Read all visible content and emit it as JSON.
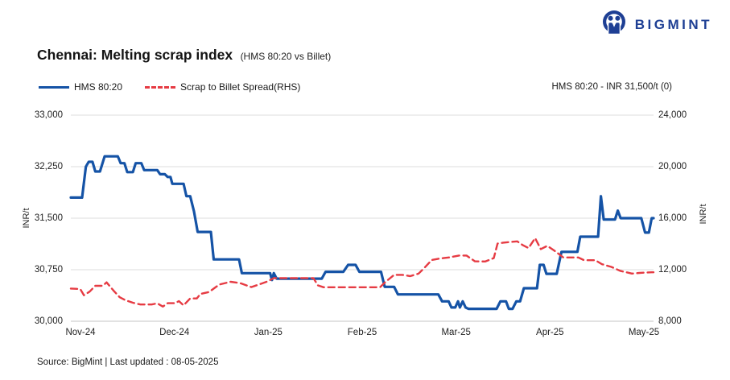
{
  "logo": {
    "brand": "BIGMINT"
  },
  "header": {
    "title": "Chennai: Melting scrap index",
    "subtitle": "(HMS 80:20 vs Billet)"
  },
  "legend": {
    "items": [
      {
        "label": "HMS 80:20"
      },
      {
        "label": "Scrap to Billet Spread(RHS)"
      }
    ],
    "annotation": "HMS 80:20 - INR 31,500/t (0)"
  },
  "footer": {
    "source": "Source: BigMint | Last updated : 08-05-2025"
  },
  "colors": {
    "brand_blue": "#1e3f94",
    "series_blue": "#1553a6",
    "series_red": "#e63b43",
    "grid": "#dcdcdc",
    "axis_line": "#c6c6c6"
  },
  "chart_data": {
    "type": "line",
    "title": "Chennai: Melting scrap index (HMS 80:20 vs Billet)",
    "grid": true,
    "legend_position": "top-left",
    "x_axis": {
      "labels": [
        "Nov-24",
        "Dec-24",
        "Jan-25",
        "Feb-25",
        "Mar-25",
        "Apr-25",
        "May-25"
      ],
      "tick_values": [
        0,
        1,
        2,
        3,
        4,
        5,
        6
      ],
      "range": [
        -0.1,
        6.1
      ]
    },
    "left_axis": {
      "title": "INR/t",
      "ticks": [
        "33,000",
        "32,250",
        "31,500",
        "30,750",
        "30,000"
      ],
      "tick_values": [
        33000,
        32250,
        31500,
        30750,
        30000
      ],
      "range": [
        30000,
        33000
      ]
    },
    "right_axis": {
      "title": "INR/t",
      "ticks": [
        "24,000",
        "20,000",
        "16,000",
        "12,000",
        "8,000"
      ],
      "tick_values": [
        24000,
        20000,
        16000,
        12000,
        8000
      ],
      "range": [
        8000,
        24000
      ]
    },
    "series": [
      {
        "name": "HMS 80:20",
        "axis": "left",
        "color": "#1553a6",
        "style": "solid",
        "latest_value": 31500,
        "latest_change": 0,
        "points": [
          [
            -0.1,
            31800
          ],
          [
            0.02,
            31800
          ],
          [
            0.06,
            32250
          ],
          [
            0.09,
            32320
          ],
          [
            0.13,
            32320
          ],
          [
            0.16,
            32180
          ],
          [
            0.21,
            32180
          ],
          [
            0.26,
            32400
          ],
          [
            0.4,
            32400
          ],
          [
            0.43,
            32300
          ],
          [
            0.47,
            32300
          ],
          [
            0.5,
            32170
          ],
          [
            0.56,
            32170
          ],
          [
            0.59,
            32300
          ],
          [
            0.65,
            32300
          ],
          [
            0.68,
            32200
          ],
          [
            0.82,
            32200
          ],
          [
            0.85,
            32140
          ],
          [
            0.9,
            32140
          ],
          [
            0.93,
            32100
          ],
          [
            0.96,
            32100
          ],
          [
            0.98,
            32000
          ],
          [
            1.1,
            32000
          ],
          [
            1.13,
            31820
          ],
          [
            1.17,
            31820
          ],
          [
            1.21,
            31600
          ],
          [
            1.25,
            31300
          ],
          [
            1.39,
            31300
          ],
          [
            1.42,
            30900
          ],
          [
            1.69,
            30900
          ],
          [
            1.72,
            30700
          ],
          [
            2.02,
            30700
          ],
          [
            2.04,
            30600
          ],
          [
            2.06,
            30700
          ],
          [
            2.09,
            30620
          ],
          [
            2.57,
            30620
          ],
          [
            2.61,
            30720
          ],
          [
            2.8,
            30720
          ],
          [
            2.85,
            30820
          ],
          [
            2.93,
            30820
          ],
          [
            2.97,
            30720
          ],
          [
            3.2,
            30720
          ],
          [
            3.24,
            30500
          ],
          [
            3.34,
            30500
          ],
          [
            3.38,
            30390
          ],
          [
            3.81,
            30390
          ],
          [
            3.85,
            30290
          ],
          [
            3.92,
            30290
          ],
          [
            3.95,
            30200
          ],
          [
            3.99,
            30200
          ],
          [
            4.02,
            30290
          ],
          [
            4.04,
            30200
          ],
          [
            4.07,
            30290
          ],
          [
            4.1,
            30200
          ],
          [
            4.13,
            30180
          ],
          [
            4.43,
            30180
          ],
          [
            4.47,
            30290
          ],
          [
            4.53,
            30290
          ],
          [
            4.56,
            30180
          ],
          [
            4.6,
            30180
          ],
          [
            4.64,
            30290
          ],
          [
            4.68,
            30290
          ],
          [
            4.72,
            30480
          ],
          [
            4.86,
            30480
          ],
          [
            4.89,
            30820
          ],
          [
            4.93,
            30820
          ],
          [
            4.96,
            30690
          ],
          [
            5.07,
            30690
          ],
          [
            5.12,
            31010
          ],
          [
            5.29,
            31010
          ],
          [
            5.32,
            31230
          ],
          [
            5.51,
            31230
          ],
          [
            5.54,
            31820
          ],
          [
            5.57,
            31480
          ],
          [
            5.69,
            31480
          ],
          [
            5.72,
            31610
          ],
          [
            5.75,
            31500
          ],
          [
            5.97,
            31500
          ],
          [
            6.01,
            31290
          ],
          [
            6.05,
            31290
          ],
          [
            6.08,
            31500
          ],
          [
            6.1,
            31500
          ]
        ]
      },
      {
        "name": "Scrap to Billet Spread(RHS)",
        "axis": "right",
        "color": "#e63b43",
        "style": "dashed",
        "points": [
          [
            -0.1,
            10540
          ],
          [
            0.0,
            10500
          ],
          [
            0.04,
            10020
          ],
          [
            0.1,
            10300
          ],
          [
            0.16,
            10750
          ],
          [
            0.24,
            10750
          ],
          [
            0.28,
            11020
          ],
          [
            0.36,
            10330
          ],
          [
            0.42,
            9860
          ],
          [
            0.48,
            9640
          ],
          [
            0.56,
            9440
          ],
          [
            0.64,
            9300
          ],
          [
            0.76,
            9300
          ],
          [
            0.82,
            9390
          ],
          [
            0.88,
            9140
          ],
          [
            0.93,
            9400
          ],
          [
            1.01,
            9400
          ],
          [
            1.05,
            9560
          ],
          [
            1.1,
            9230
          ],
          [
            1.17,
            9770
          ],
          [
            1.24,
            9770
          ],
          [
            1.28,
            10120
          ],
          [
            1.37,
            10270
          ],
          [
            1.48,
            10850
          ],
          [
            1.6,
            11060
          ],
          [
            1.7,
            10960
          ],
          [
            1.82,
            10650
          ],
          [
            1.92,
            10900
          ],
          [
            1.99,
            11080
          ],
          [
            2.06,
            11350
          ],
          [
            2.48,
            11350
          ],
          [
            2.53,
            10780
          ],
          [
            2.59,
            10640
          ],
          [
            3.19,
            10640
          ],
          [
            3.24,
            11000
          ],
          [
            3.34,
            11600
          ],
          [
            3.43,
            11600
          ],
          [
            3.51,
            11500
          ],
          [
            3.6,
            11700
          ],
          [
            3.66,
            12130
          ],
          [
            3.74,
            12750
          ],
          [
            3.81,
            12850
          ],
          [
            3.92,
            12950
          ],
          [
            4.03,
            13100
          ],
          [
            4.11,
            13100
          ],
          [
            4.2,
            12650
          ],
          [
            4.31,
            12640
          ],
          [
            4.4,
            12900
          ],
          [
            4.44,
            14030
          ],
          [
            4.5,
            14100
          ],
          [
            4.65,
            14200
          ],
          [
            4.71,
            13900
          ],
          [
            4.77,
            13680
          ],
          [
            4.84,
            14450
          ],
          [
            4.9,
            13600
          ],
          [
            4.97,
            13850
          ],
          [
            5.06,
            13400
          ],
          [
            5.14,
            12950
          ],
          [
            5.3,
            12950
          ],
          [
            5.36,
            12740
          ],
          [
            5.48,
            12740
          ],
          [
            5.55,
            12430
          ],
          [
            5.65,
            12220
          ],
          [
            5.75,
            11900
          ],
          [
            5.87,
            11700
          ],
          [
            5.95,
            11750
          ],
          [
            6.08,
            11800
          ],
          [
            6.1,
            11800
          ]
        ]
      }
    ]
  }
}
